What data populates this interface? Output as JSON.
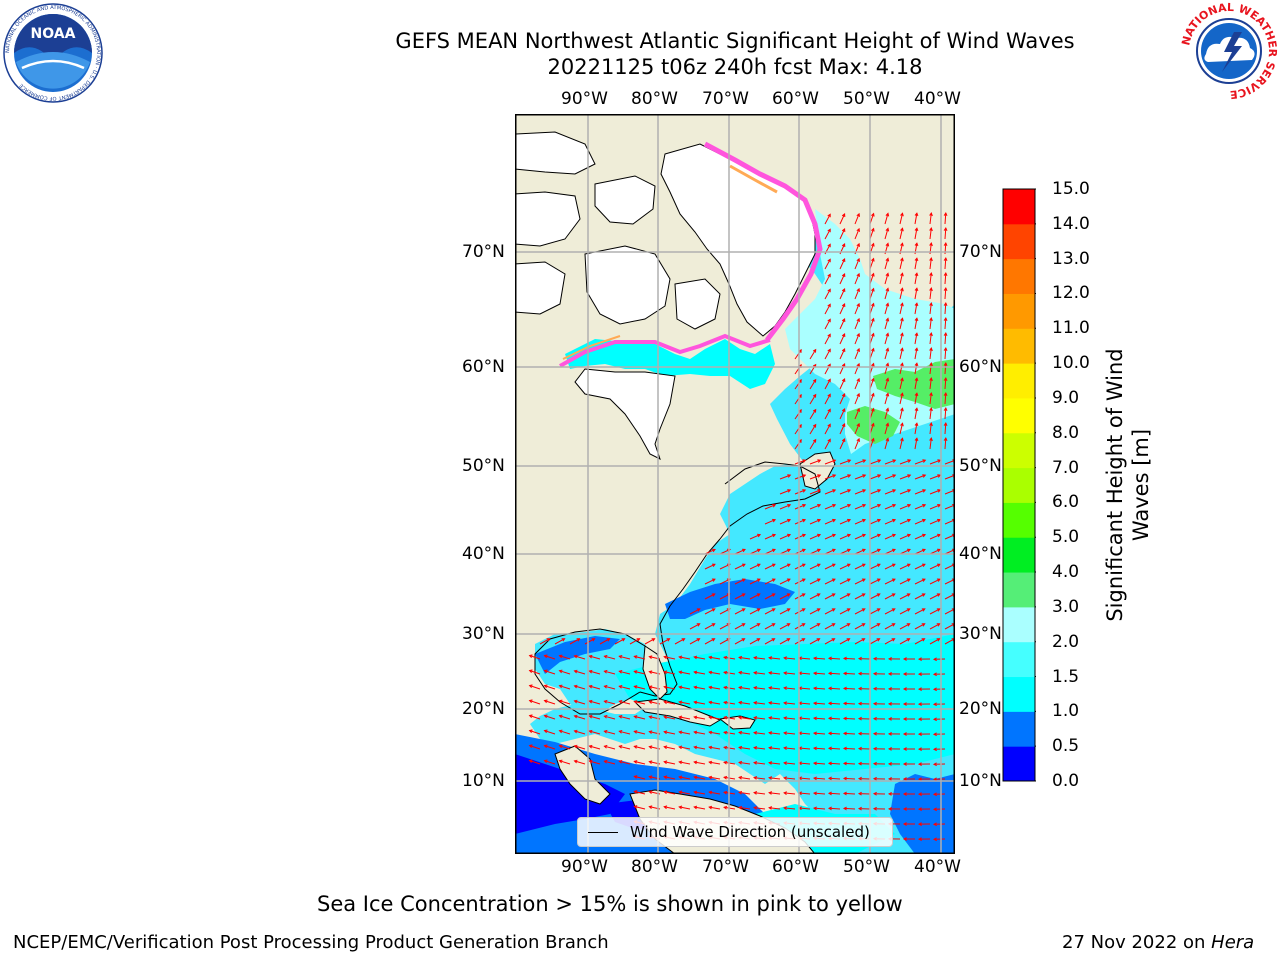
{
  "header": {
    "title_line1": "GEFS MEAN Northwest Atlantic Significant Height of Wind Waves",
    "title_line2": "20221125 t06z 240h fcst   Max: 4.18"
  },
  "logos": {
    "noaa_text": "NOAA",
    "noaa_ring": "NATIONAL OCEANIC AND ATMOSPHERIC ADMINISTRATION · U.S. DEPARTMENT OF COMMERCE",
    "nws_ring": "NATIONAL WEATHER SERVICE"
  },
  "map": {
    "lon_labels": [
      "90°W",
      "80°W",
      "70°W",
      "60°W",
      "50°W",
      "40°W"
    ],
    "lat_labels": [
      "70°N",
      "60°N",
      "50°N",
      "40°N",
      "30°N",
      "20°N",
      "10°N"
    ],
    "legend_label": "Wind Wave Direction (unscaled)",
    "colors": {
      "land": "#efedd8",
      "ice_free_ocean_low": "#00ffff",
      "ocean_mid": "#44e8ff",
      "ocean_deep": "#0075ff",
      "ocean_min": "#0000ff",
      "wave_green": "#55ee66",
      "ice_pink": "#ff55dd",
      "ice_orange": "#ffaa55",
      "arrow": "#ff0000",
      "grid": "#b0b0b0"
    }
  },
  "colorbar": {
    "title": "Significant Height of Wind Waves [m]",
    "ticks": [
      "15.0",
      "14.0",
      "13.0",
      "12.0",
      "11.0",
      "10.0",
      "9.0",
      "8.0",
      "7.0",
      "6.0",
      "5.0",
      "4.0",
      "3.0",
      "2.0",
      "1.5",
      "1.0",
      "0.5",
      "0.0"
    ],
    "colors_bottom_to_top": [
      "#0000ff",
      "#0075ff",
      "#00ffff",
      "#45ffff",
      "#aaffff",
      "#55ee77",
      "#00ee22",
      "#55ff00",
      "#aaff00",
      "#ccff00",
      "#ffff00",
      "#ffee00",
      "#ffbb00",
      "#ff9900",
      "#ff7700",
      "#ff4400",
      "#ff0000"
    ]
  },
  "footer": {
    "caption": "Sea Ice Concentration > 15% is shown in pink to yellow",
    "left": "NCEP/EMC/Verification Post Processing Product Generation Branch",
    "date": "27 Nov 2022 on",
    "machine": "Hera"
  }
}
